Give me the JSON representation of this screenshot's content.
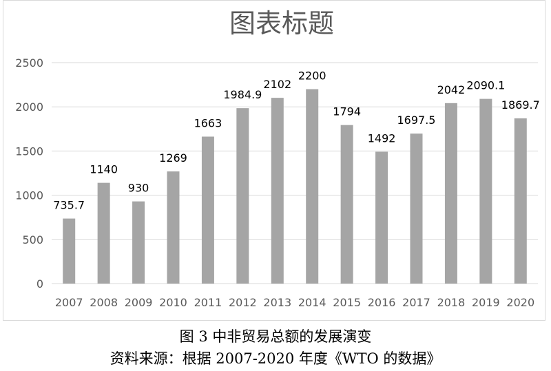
{
  "chart_data": {
    "type": "bar",
    "title": "图表标题",
    "categories": [
      "2007",
      "2008",
      "2009",
      "2010",
      "2011",
      "2012",
      "2013",
      "2014",
      "2015",
      "2016",
      "2017",
      "2018",
      "2019",
      "2020"
    ],
    "values": [
      735.7,
      1140,
      930,
      1269,
      1663,
      1984.9,
      2102,
      2200,
      1794,
      1492,
      1697.5,
      2042,
      2090.1,
      1869.7
    ],
    "value_labels": [
      "735.7",
      "1140",
      "930",
      "1269",
      "1663",
      "1984.9",
      "2102",
      "2200",
      "1794",
      "1492",
      "1697.5",
      "2042",
      "2090.1",
      "1869.7"
    ],
    "ylim": [
      0,
      2500
    ],
    "yticks": [
      "0",
      "500",
      "1000",
      "1500",
      "2000",
      "2500"
    ],
    "grid": true,
    "bar_color": "#a5a5a5"
  },
  "captions": {
    "figure": "图 3 中非贸易总额的发展演变",
    "source": "资料来源：根据 2007-2020 年度《WTO 的数据》"
  }
}
